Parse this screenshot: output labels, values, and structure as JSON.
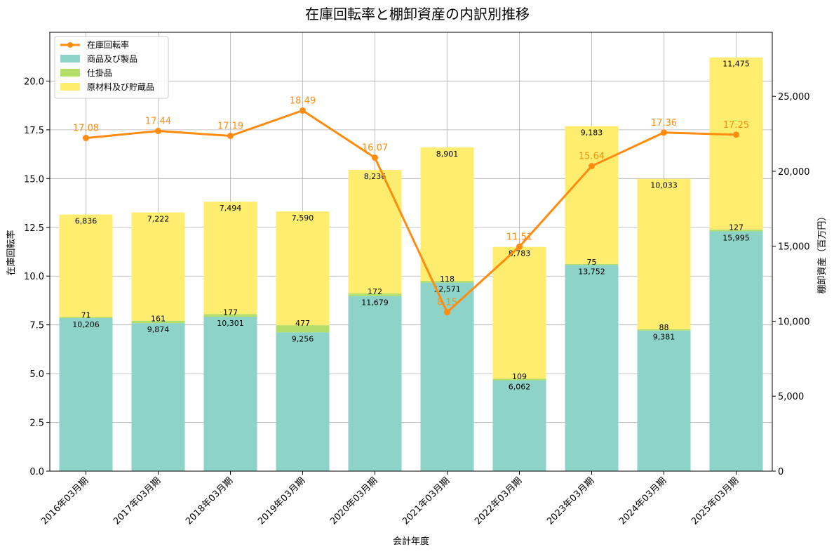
{
  "chart_data": {
    "type": "bar",
    "title": "在庫回転率と棚卸資産の内訳別推移",
    "xlabel": "会計年度",
    "ylabel_left": "在庫回転率",
    "ylabel_right": "棚卸資産（百万円）",
    "categories": [
      "2016年03月期",
      "2017年03月期",
      "2018年03月期",
      "2019年03月期",
      "2020年03月期",
      "2021年03月期",
      "2022年03月期",
      "2023年03月期",
      "2024年03月期",
      "2025年03月期"
    ],
    "left_axis": {
      "min": 0,
      "max": 22.5,
      "ticks": [
        0.0,
        2.5,
        5.0,
        7.5,
        10.0,
        12.5,
        15.0,
        17.5,
        20.0
      ],
      "tick_labels": [
        "0.0",
        "2.5",
        "5.0",
        "7.5",
        "10.0",
        "12.5",
        "15.0",
        "17.5",
        "20.0"
      ]
    },
    "right_axis": {
      "min": 0,
      "max": 29270,
      "ticks": [
        0,
        5000,
        10000,
        15000,
        20000,
        25000
      ],
      "tick_labels": [
        "0",
        "5,000",
        "10,000",
        "15,000",
        "20,000",
        "25,000"
      ]
    },
    "grid": true,
    "legend_position": "top-left",
    "bar_series": [
      {
        "name": "商品及び製品",
        "color": "#8dd3c7",
        "values": [
          10206,
          9874,
          10301,
          9256,
          11679,
          12571,
          6062,
          13752,
          9381,
          15995
        ],
        "labels": [
          "10,206",
          "9,874",
          "10,301",
          "9,256",
          "11,679",
          "12,571",
          "6,062",
          "13,752",
          "9,381",
          "15,995"
        ]
      },
      {
        "name": "仕掛品",
        "color": "#b3de69",
        "values": [
          71,
          161,
          177,
          477,
          172,
          118,
          109,
          75,
          88,
          127
        ],
        "labels": [
          "71",
          "161",
          "177",
          "477",
          "172",
          "118",
          "109",
          "75",
          "88",
          "127"
        ]
      },
      {
        "name": "原材料及び貯蔵品",
        "color": "#ffed6f",
        "values": [
          6836,
          7222,
          7494,
          7590,
          8236,
          8901,
          8783,
          9183,
          10033,
          11475
        ],
        "labels": [
          "6,836",
          "7,222",
          "7,494",
          "7,590",
          "8,236",
          "8,901",
          "8,783",
          "9,183",
          "10,033",
          "11,475"
        ]
      }
    ],
    "line_series": {
      "name": "在庫回転率",
      "color": "#ff8c0f",
      "values": [
        17.08,
        17.44,
        17.19,
        18.49,
        16.07,
        8.15,
        11.51,
        15.64,
        17.36,
        17.25
      ],
      "labels": [
        "17.08",
        "17.44",
        "17.19",
        "18.49",
        "16.07",
        "8.15",
        "11.51",
        "15.64",
        "17.36",
        "17.25"
      ]
    }
  }
}
